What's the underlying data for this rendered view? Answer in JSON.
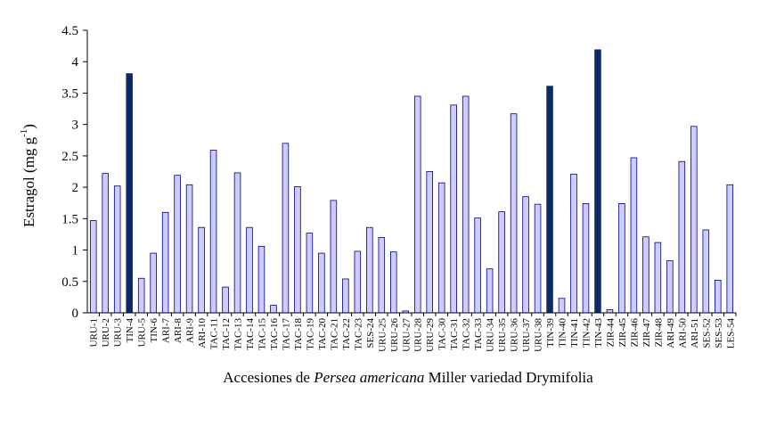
{
  "chart_data": {
    "type": "bar",
    "ylabel_main": "Estragol (mg g",
    "ylabel_sup": "-1",
    "ylabel_end": ")",
    "xlabel_pre": "Accesiones de ",
    "xlabel_italic": "Persea americana",
    "xlabel_post": " Miller variedad Drymifolia",
    "ylim": [
      0,
      4.5
    ],
    "yticks": [
      "0",
      "0.5",
      "1",
      "1.5",
      "2",
      "2.5",
      "3",
      "3.5",
      "4",
      "4.5"
    ],
    "categories": [
      "URU-1",
      "URU-2",
      "URU-3",
      "TIN-4",
      "URU-5",
      "TIN-6",
      "ARI-7",
      "ARI-8",
      "ARI-9",
      "ARI-10",
      "TAC-11",
      "TAC-12",
      "TAC-13",
      "TAC-14",
      "TAC-15",
      "TAC-16",
      "TAC-17",
      "TAC-18",
      "TAC-19",
      "TAC-20",
      "TAC-21",
      "TAC-22",
      "TAC-23",
      "SES-24",
      "URU-25",
      "URU-26",
      "URU-27",
      "URU-28",
      "URU-29",
      "TAC-30",
      "TAC-31",
      "TAC-32",
      "TAC-33",
      "URU-34",
      "URU-35",
      "URU-36",
      "URU-37",
      "URU-38",
      "TIN-39",
      "TIN-40",
      "TIN-41",
      "TIN-42",
      "TIN-43",
      "ZIR-44",
      "ZIR-45",
      "ZIR-46",
      "ZIR-47",
      "ZIR-48",
      "ARI-49",
      "ARI-50",
      "ARI-51",
      "SES-52",
      "SES-53",
      "LES-54"
    ],
    "values": [
      1.47,
      2.22,
      2.02,
      3.81,
      0.55,
      0.95,
      1.6,
      2.19,
      2.04,
      1.36,
      2.59,
      0.41,
      2.23,
      1.36,
      1.06,
      0.12,
      2.7,
      2.01,
      1.27,
      0.95,
      1.79,
      0.54,
      0.98,
      1.36,
      1.2,
      0.97,
      0.03,
      3.45,
      2.25,
      2.07,
      3.31,
      3.45,
      1.51,
      0.7,
      1.61,
      3.17,
      1.85,
      1.73,
      3.61,
      0.23,
      2.21,
      1.74,
      4.19,
      0.05,
      1.74,
      2.47,
      1.21,
      1.12,
      0.83,
      2.41,
      2.97,
      1.32,
      0.52,
      2.04
    ],
    "highlighted": [
      "TIN-4",
      "TIN-39",
      "TIN-43"
    ],
    "colors": {
      "bar_fill": "#ccccff",
      "bar_stroke": "#000080",
      "highlight_fill": "#0d2a66"
    },
    "grid": false
  }
}
